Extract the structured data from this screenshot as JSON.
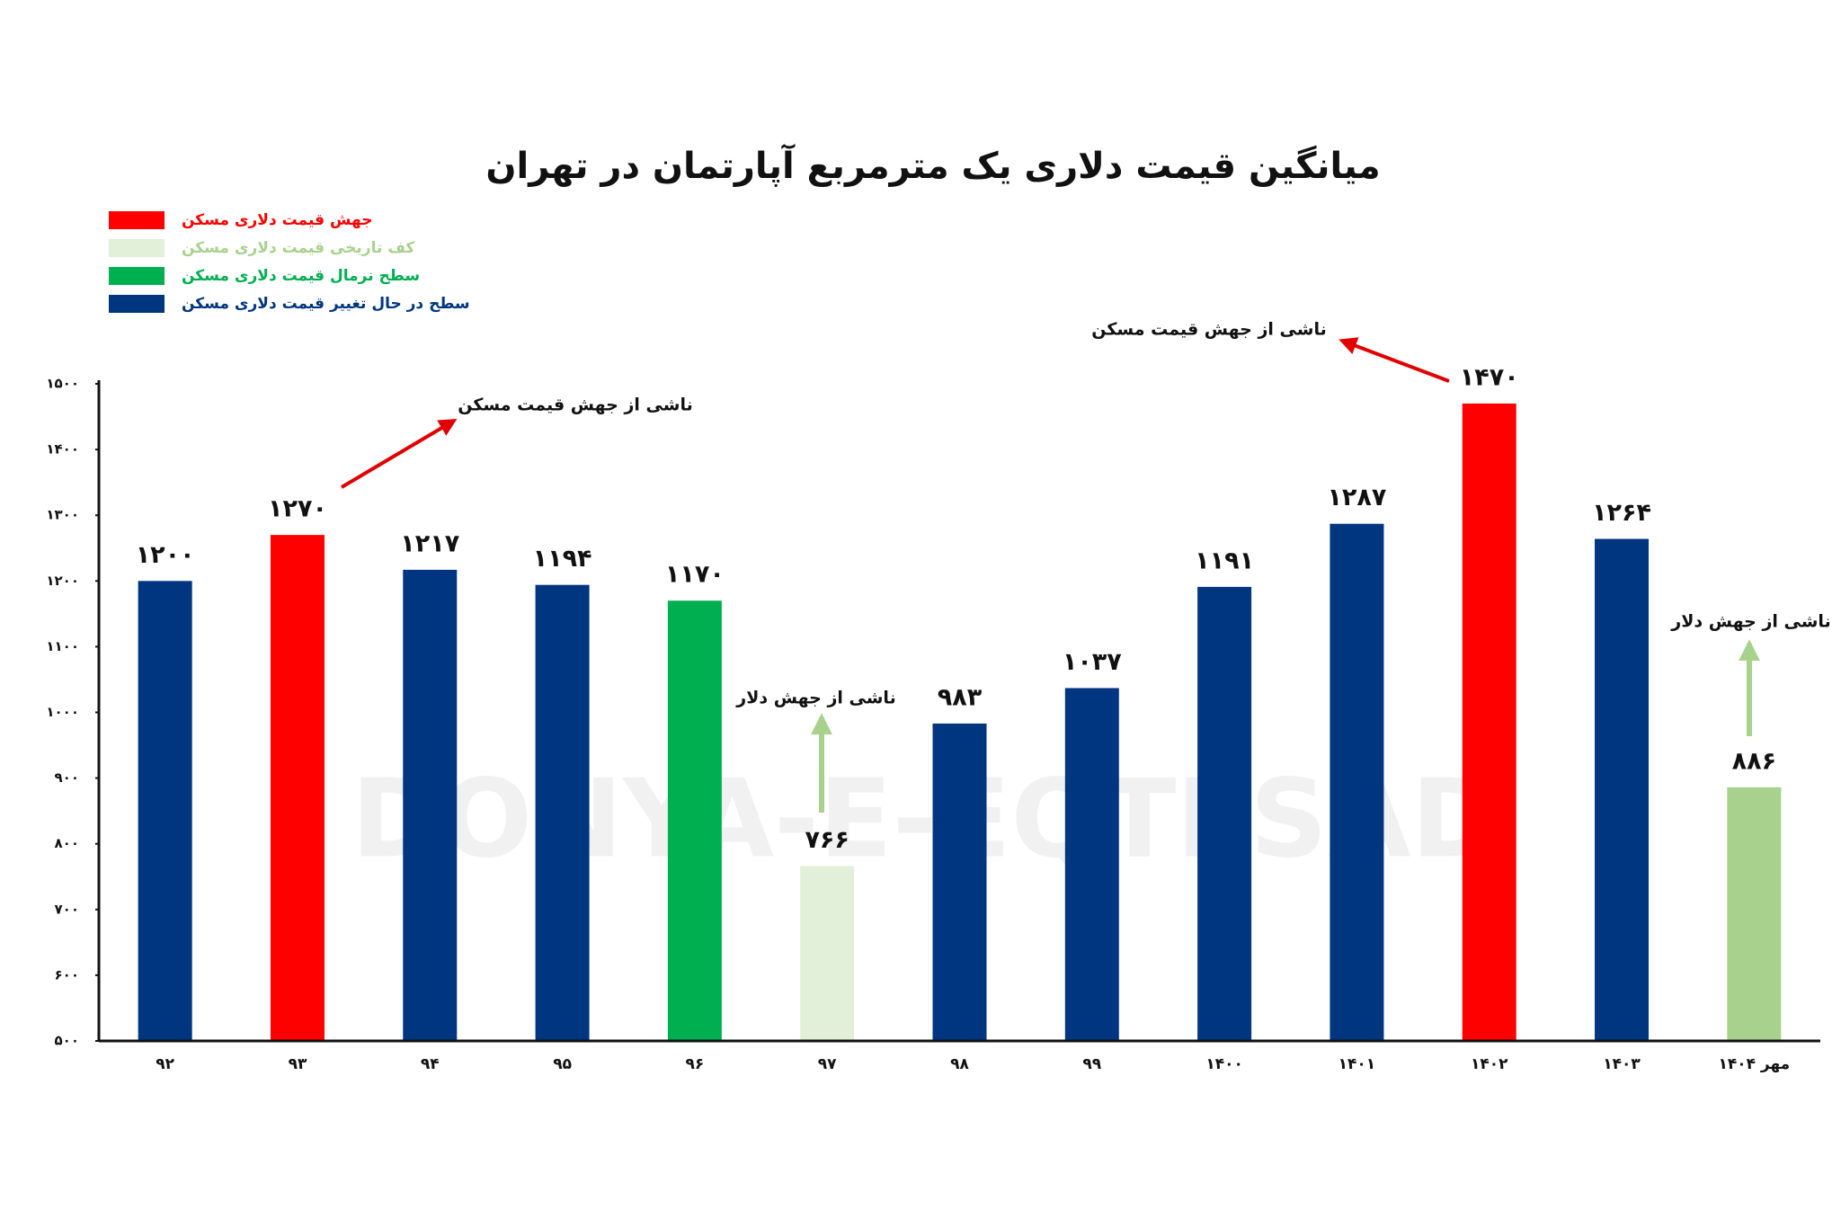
{
  "chart_data": {
    "type": "bar",
    "title": "میانگین قیمت دلاری یک مترمربع آپارتمان در تهران",
    "watermark": "DONYA-E-EQTESAD",
    "categories": [
      "۹۲",
      "۹۳",
      "۹۴",
      "۹۵",
      "۹۶",
      "۹۷",
      "۹۸",
      "۹۹",
      "۱۴۰۰",
      "۱۴۰۱",
      "۱۴۰۲",
      "۱۴۰۳",
      "مهر ۱۴۰۴"
    ],
    "values": [
      1200,
      1270,
      1217,
      1194,
      1170,
      766,
      983,
      1037,
      1191,
      1287,
      1470,
      1264,
      886
    ],
    "value_labels": [
      "۱۲۰۰",
      "۱۲۷۰",
      "۱۲۱۷",
      "۱۱۹۴",
      "۱۱۷۰",
      "۷۶۶",
      "۹۸۳",
      "۱۰۳۷",
      "۱۱۹۱",
      "۱۲۸۷",
      "۱۴۷۰",
      "۱۲۶۴",
      "۸۸۶"
    ],
    "colors": [
      "#003580",
      "#ff0000",
      "#003580",
      "#003580",
      "#00b050",
      "#e2efd9",
      "#003580",
      "#003580",
      "#003580",
      "#003580",
      "#ff0000",
      "#003580",
      "#a9d18e"
    ],
    "legend": [
      {
        "label": "جهش قیمت دلاری مسکن",
        "color": "#ff0000",
        "text_color": "#ff0000"
      },
      {
        "label": "کف تاریخی قیمت دلاری مسکن",
        "color": "#e2efd9",
        "text_color": "#a9d18e"
      },
      {
        "label": "سطح نرمال قیمت دلاری مسکن",
        "color": "#00b050",
        "text_color": "#00b050"
      },
      {
        "label": "سطح در حال تغییر قیمت دلاری مسکن",
        "color": "#003580",
        "text_color": "#003580"
      }
    ],
    "annotations": [
      "ناشی از جهش قیمت مسکن",
      "ناشی از جهش قیمت مسکن",
      "ناشی از جهش دلار",
      "ناشی از جهش دلار"
    ],
    "ylim": [
      500,
      1500
    ],
    "yticks": [
      {
        "value": 500,
        "label": "۵۰۰"
      },
      {
        "value": 600,
        "label": "۶۰۰"
      },
      {
        "value": 700,
        "label": "۷۰۰"
      },
      {
        "value": 800,
        "label": "۸۰۰"
      },
      {
        "value": 900,
        "label": "۹۰۰"
      },
      {
        "value": 1000,
        "label": "۱۰۰۰"
      },
      {
        "value": 1100,
        "label": "۱۱۰۰"
      },
      {
        "value": 1200,
        "label": "۱۲۰۰"
      },
      {
        "value": 1300,
        "label": "۱۳۰۰"
      },
      {
        "value": 1400,
        "label": "۱۴۰۰"
      },
      {
        "value": 1500,
        "label": "۱۵۰۰"
      }
    ],
    "grid": false
  }
}
